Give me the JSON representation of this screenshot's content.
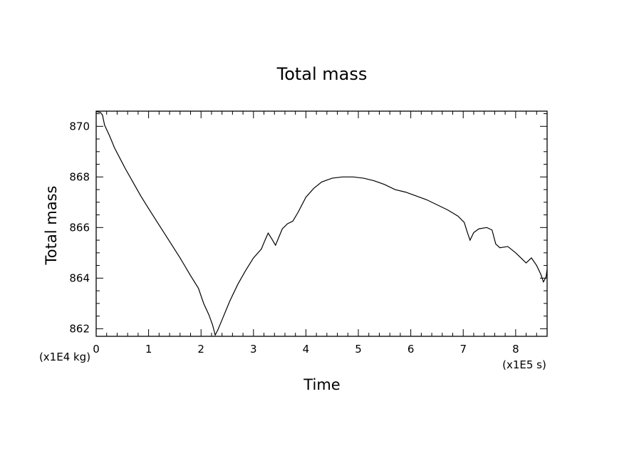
{
  "chart_data": {
    "type": "line",
    "title": "Total mass",
    "xlabel": "Time",
    "ylabel": "Total mass",
    "x_multiplier_label": "(x1E5 s)",
    "y_multiplier_label": "(x1E4 kg)",
    "xlim": [
      0,
      8.6
    ],
    "ylim": [
      861.7,
      870.6
    ],
    "x_ticks": [
      0,
      1,
      2,
      3,
      4,
      5,
      6,
      7,
      8
    ],
    "x_tick_labels": [
      "0",
      "1",
      "2",
      "3",
      "4",
      "5",
      "6",
      "7",
      "8"
    ],
    "y_ticks": [
      862,
      864,
      866,
      868,
      870
    ],
    "y_tick_labels": [
      "862",
      "864",
      "866",
      "868",
      "870"
    ],
    "grid": false,
    "series": [
      {
        "color": "#000000",
        "points": [
          [
            0.0,
            870.58
          ],
          [
            0.08,
            870.55
          ],
          [
            0.12,
            870.45
          ],
          [
            0.16,
            870.05
          ],
          [
            0.25,
            869.65
          ],
          [
            0.35,
            869.15
          ],
          [
            0.45,
            868.75
          ],
          [
            0.55,
            868.35
          ],
          [
            0.7,
            867.8
          ],
          [
            0.85,
            867.25
          ],
          [
            1.0,
            866.75
          ],
          [
            1.2,
            866.1
          ],
          [
            1.4,
            865.45
          ],
          [
            1.6,
            864.8
          ],
          [
            1.8,
            864.1
          ],
          [
            1.95,
            863.6
          ],
          [
            2.05,
            863.0
          ],
          [
            2.15,
            862.55
          ],
          [
            2.22,
            862.15
          ],
          [
            2.27,
            861.75
          ],
          [
            2.32,
            861.95
          ],
          [
            2.4,
            862.35
          ],
          [
            2.55,
            863.1
          ],
          [
            2.7,
            863.75
          ],
          [
            2.85,
            864.3
          ],
          [
            3.0,
            864.8
          ],
          [
            3.15,
            865.15
          ],
          [
            3.22,
            865.5
          ],
          [
            3.28,
            865.78
          ],
          [
            3.35,
            865.55
          ],
          [
            3.42,
            865.3
          ],
          [
            3.48,
            865.6
          ],
          [
            3.55,
            865.95
          ],
          [
            3.65,
            866.15
          ],
          [
            3.75,
            866.25
          ],
          [
            3.85,
            866.6
          ],
          [
            4.0,
            867.2
          ],
          [
            4.15,
            867.55
          ],
          [
            4.3,
            867.8
          ],
          [
            4.5,
            867.95
          ],
          [
            4.7,
            868.0
          ],
          [
            4.9,
            868.0
          ],
          [
            5.1,
            867.95
          ],
          [
            5.3,
            867.85
          ],
          [
            5.5,
            867.7
          ],
          [
            5.7,
            867.5
          ],
          [
            5.9,
            867.4
          ],
          [
            6.1,
            867.25
          ],
          [
            6.3,
            867.1
          ],
          [
            6.5,
            866.9
          ],
          [
            6.7,
            866.7
          ],
          [
            6.9,
            866.45
          ],
          [
            7.02,
            866.2
          ],
          [
            7.08,
            865.8
          ],
          [
            7.13,
            865.5
          ],
          [
            7.2,
            865.8
          ],
          [
            7.3,
            865.95
          ],
          [
            7.45,
            866.0
          ],
          [
            7.55,
            865.9
          ],
          [
            7.62,
            865.35
          ],
          [
            7.7,
            865.2
          ],
          [
            7.85,
            865.25
          ],
          [
            8.0,
            865.0
          ],
          [
            8.1,
            864.8
          ],
          [
            8.2,
            864.6
          ],
          [
            8.3,
            864.8
          ],
          [
            8.4,
            864.5
          ],
          [
            8.48,
            864.15
          ],
          [
            8.53,
            863.85
          ],
          [
            8.58,
            864.05
          ],
          [
            8.6,
            864.35
          ]
        ]
      }
    ]
  }
}
